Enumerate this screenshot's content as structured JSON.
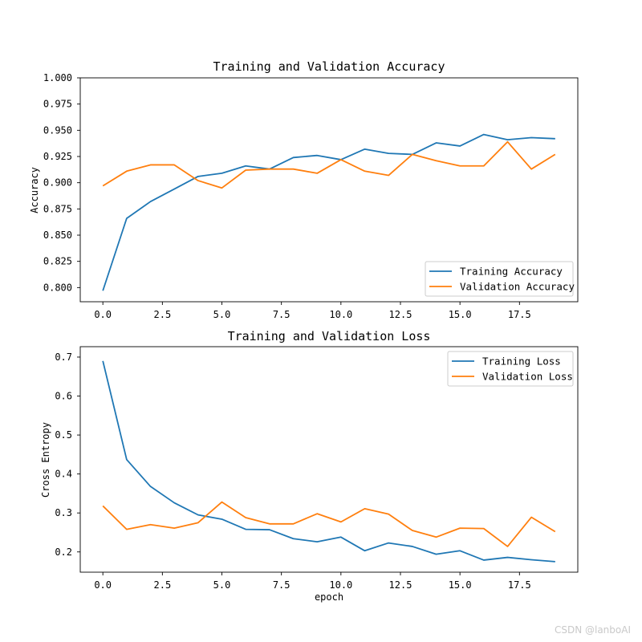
{
  "chart_data": [
    {
      "type": "line",
      "title": "Training and Validation Accuracy",
      "xlabel": "",
      "ylabel": "Accuracy",
      "xlim": [
        -0.95,
        19.95
      ],
      "ylim": [
        0.7865,
        1.0
      ],
      "xticks": [
        0,
        2.5,
        5,
        7.5,
        10,
        12.5,
        15,
        17.5
      ],
      "xtick_labels": [
        "0.0",
        "2.5",
        "5.0",
        "7.5",
        "10.0",
        "12.5",
        "15.0",
        "17.5"
      ],
      "yticks": [
        0.8,
        0.825,
        0.85,
        0.875,
        0.9,
        0.925,
        0.95,
        0.975,
        1.0
      ],
      "ytick_labels": [
        "0.800",
        "0.825",
        "0.850",
        "0.875",
        "0.900",
        "0.925",
        "0.950",
        "0.975",
        "1.000"
      ],
      "legend_position": "lower-right",
      "x": [
        0,
        1,
        2,
        3,
        4,
        5,
        6,
        7,
        8,
        9,
        10,
        11,
        12,
        13,
        14,
        15,
        16,
        17,
        18,
        19
      ],
      "series": [
        {
          "name": "Training Accuracy",
          "color": "#1f77b4",
          "values": [
            0.797,
            0.866,
            0.882,
            0.894,
            0.906,
            0.909,
            0.916,
            0.913,
            0.924,
            0.926,
            0.922,
            0.932,
            0.928,
            0.927,
            0.938,
            0.935,
            0.946,
            0.941,
            0.943,
            0.942
          ]
        },
        {
          "name": "Validation Accuracy",
          "color": "#ff7f0e",
          "values": [
            0.897,
            0.911,
            0.917,
            0.917,
            0.902,
            0.895,
            0.912,
            0.913,
            0.913,
            0.909,
            0.922,
            0.911,
            0.907,
            0.927,
            0.921,
            0.916,
            0.916,
            0.939,
            0.913,
            0.927
          ]
        }
      ]
    },
    {
      "type": "line",
      "title": "Training and Validation Loss",
      "xlabel": "epoch",
      "ylabel": "Cross Entropy",
      "xlim": [
        -0.95,
        19.95
      ],
      "ylim": [
        0.148,
        0.7267
      ],
      "xticks": [
        0,
        2.5,
        5,
        7.5,
        10,
        12.5,
        15,
        17.5
      ],
      "xtick_labels": [
        "0.0",
        "2.5",
        "5.0",
        "7.5",
        "10.0",
        "12.5",
        "15.0",
        "17.5"
      ],
      "yticks": [
        0.2,
        0.3,
        0.4,
        0.5,
        0.6,
        0.7
      ],
      "ytick_labels": [
        "0.2",
        "0.3",
        "0.4",
        "0.5",
        "0.6",
        "0.7"
      ],
      "legend_position": "upper-right",
      "x": [
        0,
        1,
        2,
        3,
        4,
        5,
        6,
        7,
        8,
        9,
        10,
        11,
        12,
        13,
        14,
        15,
        16,
        17,
        18,
        19
      ],
      "series": [
        {
          "name": "Training Loss",
          "color": "#1f77b4",
          "values": [
            0.69,
            0.437,
            0.368,
            0.326,
            0.295,
            0.284,
            0.258,
            0.257,
            0.234,
            0.226,
            0.238,
            0.203,
            0.223,
            0.214,
            0.194,
            0.203,
            0.179,
            0.186,
            0.18,
            0.175
          ]
        },
        {
          "name": "Validation Loss",
          "color": "#ff7f0e",
          "values": [
            0.318,
            0.258,
            0.27,
            0.261,
            0.275,
            0.328,
            0.288,
            0.272,
            0.272,
            0.298,
            0.277,
            0.311,
            0.297,
            0.255,
            0.238,
            0.261,
            0.26,
            0.214,
            0.289,
            0.252
          ]
        }
      ]
    }
  ],
  "watermark": "CSDN @lanboAI"
}
